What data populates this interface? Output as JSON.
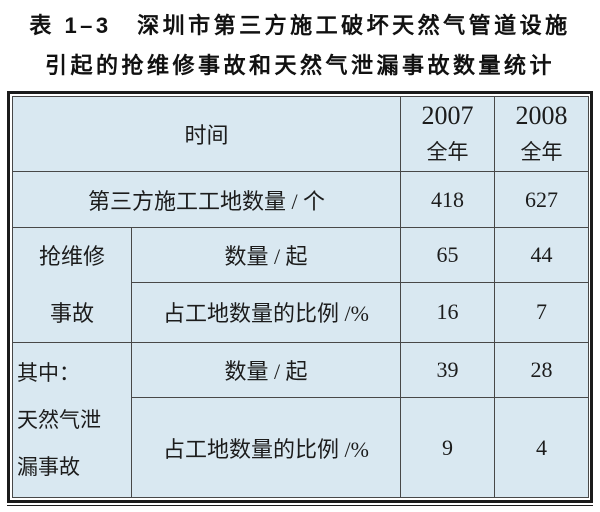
{
  "caption": {
    "line1": "表 1–3　深圳市第三方施工破坏天然气管道设施",
    "line2": "引起的抢维修事故和天然气泄漏事故数量统计"
  },
  "table": {
    "header": {
      "time_label": "时间",
      "y2007_line1": "2007",
      "y2007_line2": "全年",
      "y2008_line1": "2008",
      "y2008_line2": "全年"
    },
    "rows": {
      "sites": {
        "label": "第三方施工工地数量 / 个",
        "v2007": "418",
        "v2008": "627"
      },
      "repair_group": {
        "line1": "抢维修",
        "line2": "事故"
      },
      "repair_count": {
        "label": "数量 / 起",
        "v2007": "65",
        "v2008": "44"
      },
      "repair_ratio": {
        "label": "占工地数量的比例 /%",
        "v2007": "16",
        "v2008": "7"
      },
      "leak_group": {
        "line1": "其中：",
        "line2": "天然气泄",
        "line3": "漏事故"
      },
      "leak_count": {
        "label": "数量 / 起",
        "v2007": "39",
        "v2008": "28"
      },
      "leak_ratio": {
        "label": "占工地数量的比例 /%",
        "v2007": "9",
        "v2008": "4"
      }
    }
  },
  "colors": {
    "cell_background": "#d9e8f1",
    "outer_border": "#1b1b1b",
    "grid_line": "#484848",
    "text": "#1c1c1c"
  },
  "chart_data": {
    "type": "table",
    "title": "表1–3 深圳市第三方施工破坏天然气管道设施引起的抢维修事故和天然气泄漏事故数量统计",
    "columns": [
      "时间",
      "2007全年",
      "2008全年"
    ],
    "rows": [
      {
        "group": "",
        "label": "第三方施工工地数量/个",
        "y2007": 418,
        "y2008": 627
      },
      {
        "group": "抢维修事故",
        "label": "数量/起",
        "y2007": 65,
        "y2008": 44
      },
      {
        "group": "抢维修事故",
        "label": "占工地数量的比例/%",
        "y2007": 16,
        "y2008": 7
      },
      {
        "group": "其中：天然气泄漏事故",
        "label": "数量/起",
        "y2007": 39,
        "y2008": 28
      },
      {
        "group": "其中：天然气泄漏事故",
        "label": "占工地数量的比例/%",
        "y2007": 9,
        "y2008": 4
      }
    ]
  }
}
